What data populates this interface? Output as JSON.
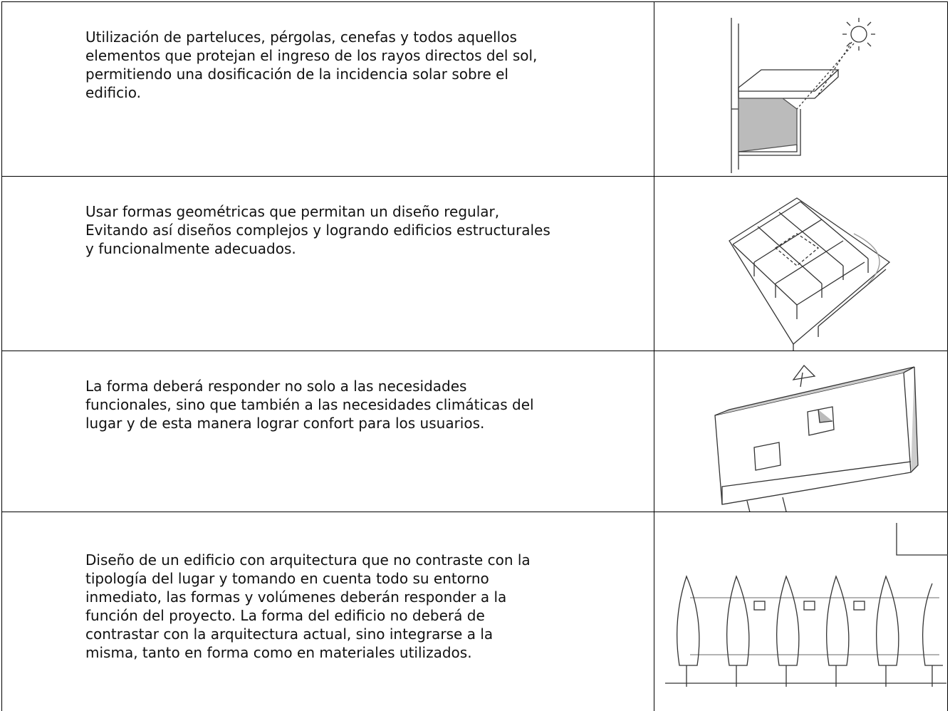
{
  "table": {
    "rows": [
      {
        "lines": [
          "Utilización de parteluces, pérgolas, cenefas y todos aquellos",
          "elementos que protejan el ingreso de los rayos directos del sol,",
          "permitiendo una dosificación de la incidencia solar sobre el",
          "edificio."
        ]
      },
      {
        "lines": [
          "Usar formas geométricas que permitan un diseño regular,",
          "Evitando así diseños complejos y logrando edificios estructurales",
          "y funcionalmente adecuados."
        ]
      },
      {
        "lines": [
          "La forma deberá responder no solo a las necesidades",
          "funcionales, sino que también a las necesidades climáticas del",
          "lugar y de esta manera lograr confort para los usuarios."
        ]
      },
      {
        "lines": [
          "Diseño de un edificio con arquitectura que no contraste con la",
          "tipología del lugar y tomando en cuenta todo su entorno",
          "inmediato, las formas y volúmenes deberán responder a la",
          "función del proyecto. La forma del edificio no deberá de",
          "contrastar con la arquitectura  actual, sino integrarse a la",
          "misma, tanto en forma como en materiales utilizados."
        ]
      }
    ]
  }
}
